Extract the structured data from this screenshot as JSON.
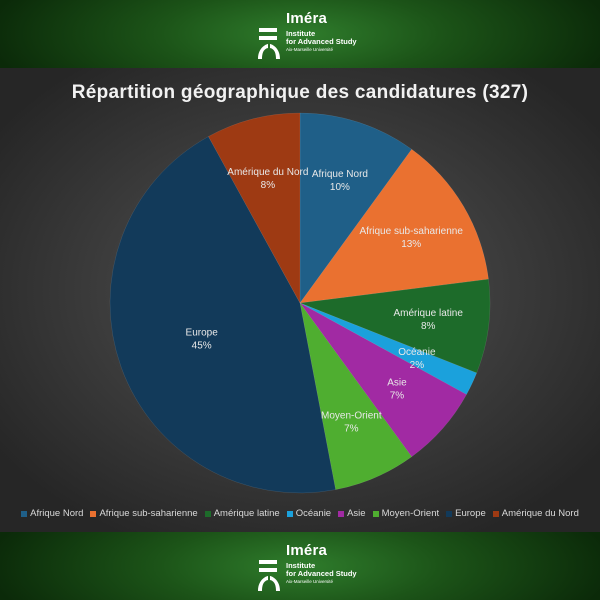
{
  "header": {
    "brand_name": "Iméra",
    "brand_line1": "Institute",
    "brand_line2": "for Advanced Study",
    "brand_line3": "Aix-Marseille Université"
  },
  "footer": {
    "brand_name": "Iméra",
    "brand_line1": "Institute",
    "brand_line2": "for Advanced Study",
    "brand_line3": "Aix-Marseille Université"
  },
  "chart_data": {
    "type": "pie",
    "title": "Répartition géographique des candidatures (327)",
    "categories": [
      "Afrique Nord",
      "Afrique sub-saharienne",
      "Amérique latine",
      "Océanie",
      "Asie",
      "Moyen-Orient",
      "Europe",
      "Amérique du Nord"
    ],
    "values": [
      10,
      13,
      8,
      2,
      7,
      7,
      45,
      8
    ],
    "labels": [
      "10%",
      "13%",
      "8%",
      "2%",
      "7%",
      "7%",
      "45%",
      "8%"
    ],
    "colors": [
      "#1f5f88",
      "#ea7130",
      "#1d6b2a",
      "#1ba1dc",
      "#a12aa3",
      "#4fae30",
      "#123a5a",
      "#9e3a13"
    ],
    "legend_position": "bottom",
    "start_angle_deg": 0,
    "direction": "clockwise"
  }
}
